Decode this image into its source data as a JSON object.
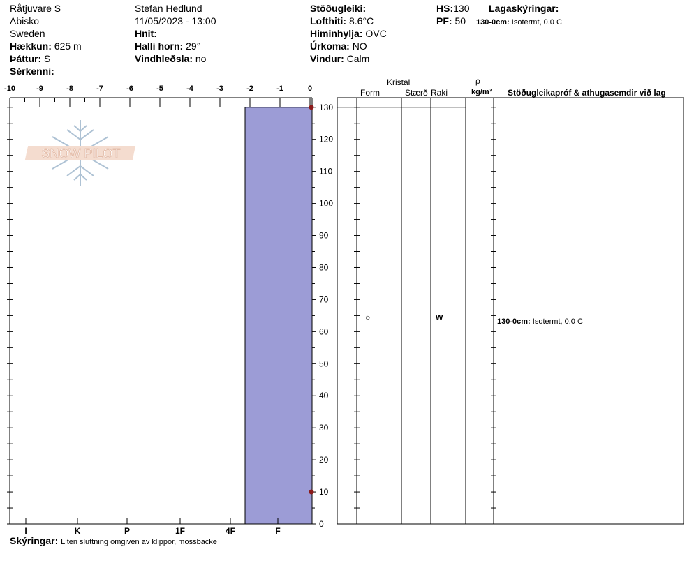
{
  "header": {
    "location": "Råtjuvare S",
    "area": "Abisko",
    "country": "Sweden",
    "elevation_label": "Hækkun:",
    "elevation": "625 m",
    "aspect_label": "Þáttur:",
    "aspect": "S",
    "features_label": "Sérkenni:",
    "features": "",
    "observer": "Stefan Hedlund",
    "datetime": "11/05/2023 - 13:00",
    "coords_label": "Hnit:",
    "coords": "",
    "slope_label": "Halli horn:",
    "slope": "29°",
    "wind_loading_label": "Vindhleðsla:",
    "wind_loading": "no",
    "stability_label": "Stöðugleiki:",
    "stability": "",
    "air_temp_label": "Lofthiti:",
    "air_temp": "8.6°C",
    "sky_label": "Himinhylja:",
    "sky": "OVC",
    "precip_label": "Úrkoma:",
    "precip": "NO",
    "wind_label": "Vindur:",
    "wind": "Calm",
    "hs_label": "HS:",
    "hs": "130",
    "pf_label": "PF:",
    "pf": "50",
    "layer_notes_label": "Lagaskýringar:",
    "layer_note_range": "130-0cm:",
    "layer_note_text": "Isotermt, 0.0 C"
  },
  "logo": {
    "text": "SNOW PILOT"
  },
  "columns": {
    "crystal": "Kristal",
    "form": "Form",
    "size": "Stærð",
    "moisture": "Raki",
    "rho": "ρ",
    "density_unit": "kg/m³",
    "tests": "Stöðugleikapróf & athugasemdir við lag"
  },
  "layer_row": {
    "form_symbol": "○",
    "moisture": "W",
    "comment_range": "130-0cm:",
    "comment_text": "Isotermt, 0.0 C"
  },
  "footer": {
    "notes_label": "Skýringar:",
    "notes": "Liten sluttning omgiven av klippor, mossbacke"
  },
  "colors": {
    "hardness_fill": "#9c9cd6",
    "temp_marker": "#8b1a1a"
  },
  "chart_data": {
    "type": "bar",
    "temperature_axis": {
      "ticks": [
        -10,
        -9,
        -8,
        -7,
        -6,
        -5,
        -4,
        -3,
        -2,
        -1,
        0
      ],
      "range": [
        -10,
        0
      ]
    },
    "depth_axis": {
      "ticks": [
        0,
        10,
        20,
        30,
        40,
        50,
        60,
        70,
        80,
        90,
        100,
        110,
        120,
        130
      ],
      "range": [
        0,
        133
      ]
    },
    "hardness_axis": {
      "ticks": [
        "I",
        "K",
        "P",
        "1F",
        "4F",
        "F"
      ]
    },
    "layers": [
      {
        "top": 130,
        "bottom": 0,
        "hardness_index": 5
      }
    ],
    "temperature_points": [
      {
        "depth": 130,
        "temp": 0
      },
      {
        "depth": 10,
        "temp": 0
      }
    ]
  }
}
